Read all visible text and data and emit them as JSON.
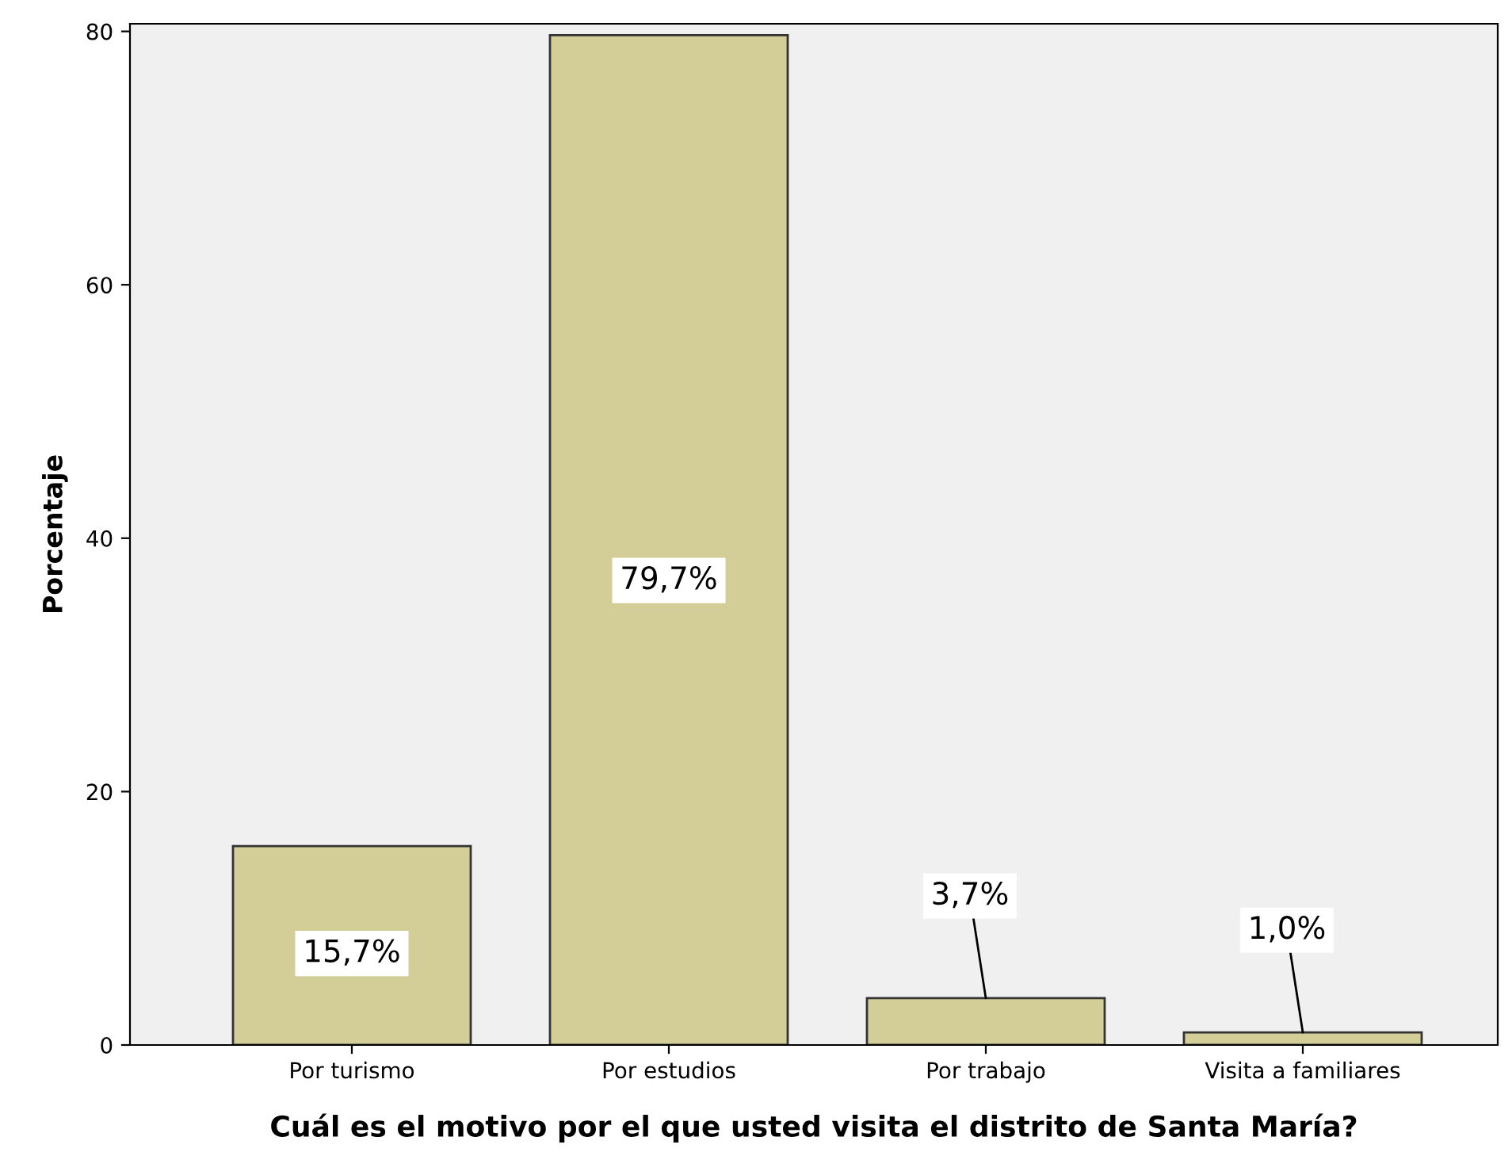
{
  "chart_data": {
    "type": "bar",
    "xlabel": "Cuál es el motivo por el que usted visita el distrito de Santa María?",
    "ylabel": "Porcentaje",
    "categories": [
      "Por turismo",
      "Por estudios",
      "Por trabajo",
      "Visita a familiares"
    ],
    "values": [
      15.7,
      79.7,
      3.7,
      1.0
    ],
    "color": "#d3ce97",
    "value_labels": [
      "15,7%",
      "79,7%",
      "3,7%",
      "1,0%"
    ],
    "ylim": [
      0,
      80.6
    ],
    "yticks": [
      0,
      20,
      40,
      60,
      80
    ],
    "grid": false
  }
}
